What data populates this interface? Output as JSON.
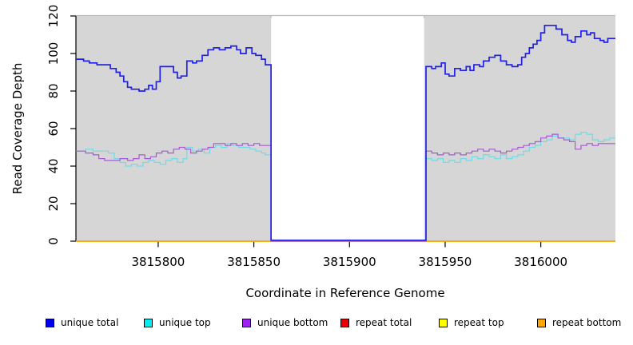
{
  "chart_data": {
    "type": "line",
    "step": true,
    "xlabel": "Coordinate in Reference Genome",
    "ylabel": "Read Coverage Depth",
    "xlim": [
      3815757,
      3816039
    ],
    "ylim": [
      0,
      120
    ],
    "x_ticks": [
      3815800,
      3815850,
      3815900,
      3815950,
      3816000
    ],
    "y_ticks": [
      0,
      20,
      40,
      60,
      80,
      100,
      120
    ],
    "grid": false,
    "panel_bg": "#d6d6d6",
    "panel_top_border": "#b9b9b9",
    "gap_region": {
      "start": 3815859,
      "end": 3815939,
      "fill": "#ffffff"
    },
    "legend_position": "bottom",
    "series": [
      {
        "name": "repeat total",
        "color": "#ee0000",
        "width": 1.6,
        "points": [
          [
            3815757,
            0
          ],
          [
            3816039,
            0
          ]
        ]
      },
      {
        "name": "repeat top",
        "color": "#ffff00",
        "width": 1.6,
        "points": [
          [
            3815757,
            0
          ],
          [
            3816039,
            0
          ]
        ]
      },
      {
        "name": "repeat bottom",
        "color": "#ffa500",
        "width": 1.6,
        "points": [
          [
            3815757,
            0
          ],
          [
            3816039,
            0
          ]
        ]
      },
      {
        "name": "unique top",
        "color": "#6fdbe6",
        "width": 1.2,
        "points": [
          [
            3815757,
            48
          ],
          [
            3815762,
            49
          ],
          [
            3815766,
            48
          ],
          [
            3815770,
            48
          ],
          [
            3815774,
            47
          ],
          [
            3815777,
            44
          ],
          [
            3815780,
            42
          ],
          [
            3815783,
            40
          ],
          [
            3815786,
            41
          ],
          [
            3815789,
            40
          ],
          [
            3815792,
            42
          ],
          [
            3815795,
            43
          ],
          [
            3815798,
            42
          ],
          [
            3815801,
            41
          ],
          [
            3815804,
            43
          ],
          [
            3815807,
            44
          ],
          [
            3815810,
            42
          ],
          [
            3815813,
            44
          ],
          [
            3815815,
            50
          ],
          [
            3815818,
            48
          ],
          [
            3815821,
            49
          ],
          [
            3815824,
            47
          ],
          [
            3815827,
            50
          ],
          [
            3815830,
            51
          ],
          [
            3815833,
            50
          ],
          [
            3815836,
            52
          ],
          [
            3815839,
            51
          ],
          [
            3815842,
            50
          ],
          [
            3815845,
            50
          ],
          [
            3815848,
            49
          ],
          [
            3815851,
            48
          ],
          [
            3815854,
            47
          ],
          [
            3815856,
            46
          ],
          [
            3815859,
            0
          ],
          [
            3815939,
            0
          ],
          [
            3815940,
            44
          ],
          [
            3815943,
            43
          ],
          [
            3815946,
            44
          ],
          [
            3815949,
            42
          ],
          [
            3815952,
            43
          ],
          [
            3815955,
            42
          ],
          [
            3815958,
            44
          ],
          [
            3815961,
            43
          ],
          [
            3815964,
            45
          ],
          [
            3815967,
            44
          ],
          [
            3815970,
            46
          ],
          [
            3815973,
            45
          ],
          [
            3815976,
            44
          ],
          [
            3815979,
            46
          ],
          [
            3815982,
            44
          ],
          [
            3815985,
            45
          ],
          [
            3815988,
            46
          ],
          [
            3815991,
            48
          ],
          [
            3815994,
            50
          ],
          [
            3815997,
            51
          ],
          [
            3816000,
            53
          ],
          [
            3816003,
            54
          ],
          [
            3816006,
            56
          ],
          [
            3816009,
            55
          ],
          [
            3816012,
            55
          ],
          [
            3816015,
            54
          ],
          [
            3816018,
            57
          ],
          [
            3816021,
            58
          ],
          [
            3816024,
            57
          ],
          [
            3816027,
            54
          ],
          [
            3816030,
            53
          ],
          [
            3816033,
            54
          ],
          [
            3816036,
            55
          ],
          [
            3816039,
            55
          ]
        ]
      },
      {
        "name": "unique bottom",
        "color": "#a55ad2",
        "width": 1.2,
        "points": [
          [
            3815757,
            48
          ],
          [
            3815762,
            47
          ],
          [
            3815766,
            46
          ],
          [
            3815769,
            44
          ],
          [
            3815772,
            43
          ],
          [
            3815776,
            43
          ],
          [
            3815780,
            44
          ],
          [
            3815784,
            43
          ],
          [
            3815787,
            44
          ],
          [
            3815790,
            46
          ],
          [
            3815793,
            44
          ],
          [
            3815796,
            45
          ],
          [
            3815799,
            47
          ],
          [
            3815802,
            48
          ],
          [
            3815805,
            47
          ],
          [
            3815808,
            49
          ],
          [
            3815811,
            50
          ],
          [
            3815814,
            49
          ],
          [
            3815817,
            47
          ],
          [
            3815820,
            48
          ],
          [
            3815823,
            49
          ],
          [
            3815826,
            50
          ],
          [
            3815829,
            52
          ],
          [
            3815832,
            52
          ],
          [
            3815835,
            51
          ],
          [
            3815838,
            52
          ],
          [
            3815841,
            51
          ],
          [
            3815844,
            52
          ],
          [
            3815847,
            51
          ],
          [
            3815850,
            52
          ],
          [
            3815853,
            51
          ],
          [
            3815856,
            51
          ],
          [
            3815859,
            0
          ],
          [
            3815939,
            0
          ],
          [
            3815940,
            48
          ],
          [
            3815943,
            47
          ],
          [
            3815946,
            46
          ],
          [
            3815949,
            47
          ],
          [
            3815952,
            46
          ],
          [
            3815955,
            47
          ],
          [
            3815958,
            46
          ],
          [
            3815961,
            47
          ],
          [
            3815964,
            48
          ],
          [
            3815967,
            49
          ],
          [
            3815970,
            48
          ],
          [
            3815973,
            49
          ],
          [
            3815976,
            48
          ],
          [
            3815979,
            47
          ],
          [
            3815982,
            48
          ],
          [
            3815985,
            49
          ],
          [
            3815988,
            50
          ],
          [
            3815991,
            51
          ],
          [
            3815994,
            52
          ],
          [
            3815997,
            53
          ],
          [
            3816000,
            55
          ],
          [
            3816003,
            56
          ],
          [
            3816006,
            57
          ],
          [
            3816009,
            55
          ],
          [
            3816012,
            54
          ],
          [
            3816015,
            53
          ],
          [
            3816018,
            49
          ],
          [
            3816021,
            51
          ],
          [
            3816024,
            52
          ],
          [
            3816027,
            51
          ],
          [
            3816030,
            52
          ],
          [
            3816033,
            52
          ],
          [
            3816036,
            52
          ],
          [
            3816039,
            52
          ]
        ]
      },
      {
        "name": "unique total",
        "color": "#2020e8",
        "width": 1.7,
        "points": [
          [
            3815757,
            97
          ],
          [
            3815761,
            96
          ],
          [
            3815764,
            95
          ],
          [
            3815768,
            94
          ],
          [
            3815772,
            94
          ],
          [
            3815775,
            92
          ],
          [
            3815778,
            90
          ],
          [
            3815780,
            88
          ],
          [
            3815782,
            85
          ],
          [
            3815784,
            82
          ],
          [
            3815786,
            81
          ],
          [
            3815790,
            80
          ],
          [
            3815793,
            81
          ],
          [
            3815795,
            83
          ],
          [
            3815797,
            81
          ],
          [
            3815799,
            85
          ],
          [
            3815801,
            93
          ],
          [
            3815805,
            93
          ],
          [
            3815808,
            90
          ],
          [
            3815810,
            87
          ],
          [
            3815812,
            88
          ],
          [
            3815815,
            96
          ],
          [
            3815818,
            95
          ],
          [
            3815820,
            96
          ],
          [
            3815823,
            99
          ],
          [
            3815826,
            102
          ],
          [
            3815829,
            103
          ],
          [
            3815832,
            102
          ],
          [
            3815835,
            103
          ],
          [
            3815838,
            104
          ],
          [
            3815841,
            102
          ],
          [
            3815843,
            100
          ],
          [
            3815846,
            103
          ],
          [
            3815849,
            100
          ],
          [
            3815851,
            99
          ],
          [
            3815854,
            97
          ],
          [
            3815856,
            94
          ],
          [
            3815859,
            0.5
          ],
          [
            3815939,
            0.5
          ],
          [
            3815940,
            93
          ],
          [
            3815943,
            92
          ],
          [
            3815945,
            93
          ],
          [
            3815948,
            95
          ],
          [
            3815950,
            89
          ],
          [
            3815952,
            88
          ],
          [
            3815955,
            92
          ],
          [
            3815958,
            91
          ],
          [
            3815961,
            93
          ],
          [
            3815963,
            91
          ],
          [
            3815965,
            94
          ],
          [
            3815968,
            93
          ],
          [
            3815970,
            96
          ],
          [
            3815973,
            98
          ],
          [
            3815976,
            99
          ],
          [
            3815979,
            96
          ],
          [
            3815982,
            94
          ],
          [
            3815985,
            93
          ],
          [
            3815988,
            94
          ],
          [
            3815990,
            98
          ],
          [
            3815992,
            100
          ],
          [
            3815994,
            103
          ],
          [
            3815996,
            105
          ],
          [
            3815998,
            107
          ],
          [
            3816000,
            111
          ],
          [
            3816002,
            115
          ],
          [
            3816005,
            115
          ],
          [
            3816008,
            113
          ],
          [
            3816011,
            110
          ],
          [
            3816014,
            107
          ],
          [
            3816016,
            106
          ],
          [
            3816018,
            109
          ],
          [
            3816021,
            112
          ],
          [
            3816024,
            110
          ],
          [
            3816026,
            111
          ],
          [
            3816028,
            108
          ],
          [
            3816031,
            107
          ],
          [
            3816033,
            106
          ],
          [
            3816035,
            108
          ],
          [
            3816039,
            108
          ]
        ]
      }
    ]
  },
  "legend": {
    "items": [
      {
        "label": "unique total",
        "color": "#0000f0"
      },
      {
        "label": "unique top",
        "color": "#00eef0"
      },
      {
        "label": "unique bottom",
        "color": "#a020f0"
      },
      {
        "label": "repeat total",
        "color": "#ee0000"
      },
      {
        "label": "repeat top",
        "color": "#ffff00"
      },
      {
        "label": "repeat bottom",
        "color": "#ffa500"
      }
    ]
  }
}
